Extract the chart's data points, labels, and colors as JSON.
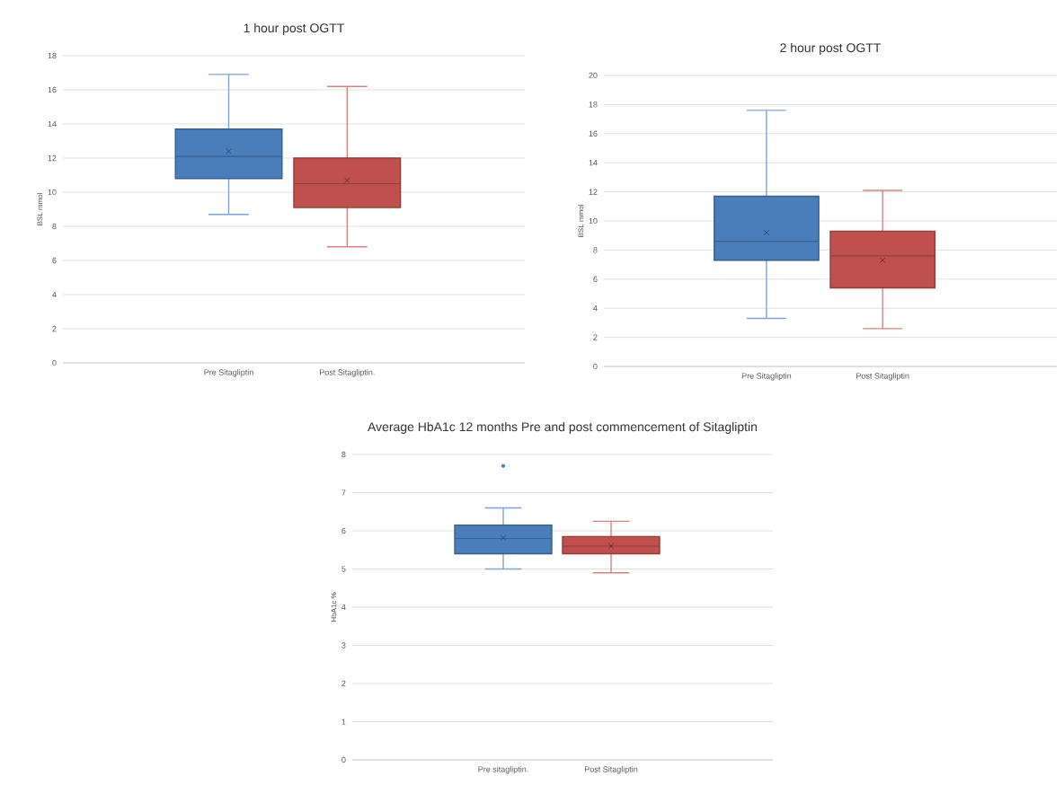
{
  "chart_data": [
    {
      "type": "box",
      "title": "1 hour post  OGTT",
      "ylabel": "BSL mmol",
      "categories": [
        "Pre Sitagliptin",
        "Post Sitagliptin."
      ],
      "colors": [
        "#4a7ebb",
        "#c0504d"
      ],
      "ylim": [
        0,
        18
      ],
      "yticks": [
        0,
        2,
        4,
        6,
        8,
        10,
        12,
        14,
        16,
        18
      ],
      "grid": "y",
      "boxes": [
        {
          "low": 8.7,
          "q1": 10.8,
          "median": 12.1,
          "q3": 13.7,
          "high": 16.9,
          "mean": 12.4
        },
        {
          "low": 6.8,
          "q1": 9.1,
          "median": 10.5,
          "q3": 12.0,
          "high": 16.2,
          "mean": 10.7
        }
      ]
    },
    {
      "type": "box",
      "title": "2 hour post OGTT",
      "ylabel": "BSL mmol",
      "categories": [
        "Pre Sitagliptin",
        "Post Sitagliptin"
      ],
      "colors": [
        "#4a7ebb",
        "#c0504d"
      ],
      "ylim": [
        0,
        20
      ],
      "yticks": [
        0,
        2,
        4,
        6,
        8,
        10,
        12,
        14,
        16,
        18,
        20
      ],
      "grid": "y",
      "boxes": [
        {
          "low": 3.3,
          "q1": 7.3,
          "median": 8.6,
          "q3": 11.7,
          "high": 17.6,
          "mean": 9.2
        },
        {
          "low": 2.6,
          "q1": 5.4,
          "median": 7.6,
          "q3": 9.3,
          "high": 12.1,
          "mean": 7.3
        }
      ]
    },
    {
      "type": "box",
      "title": "Average HbA1c 12 months Pre and post commencement of Sitagliptin",
      "ylabel": "HbA1c %",
      "categories": [
        "Pre sitagliptin.",
        "Post Sitagliptin"
      ],
      "colors": [
        "#4a7ebb",
        "#c0504d"
      ],
      "ylim": [
        0,
        8
      ],
      "yticks": [
        0,
        1,
        2,
        3,
        4,
        5,
        6,
        7,
        8
      ],
      "grid": "y",
      "boxes": [
        {
          "low": 5.0,
          "q1": 5.4,
          "median": 5.8,
          "q3": 6.15,
          "high": 6.6,
          "mean": 5.82,
          "outliers": [
            7.7
          ]
        },
        {
          "low": 4.9,
          "q1": 5.4,
          "median": 5.6,
          "q3": 5.85,
          "high": 6.25,
          "mean": 5.6
        }
      ]
    }
  ]
}
